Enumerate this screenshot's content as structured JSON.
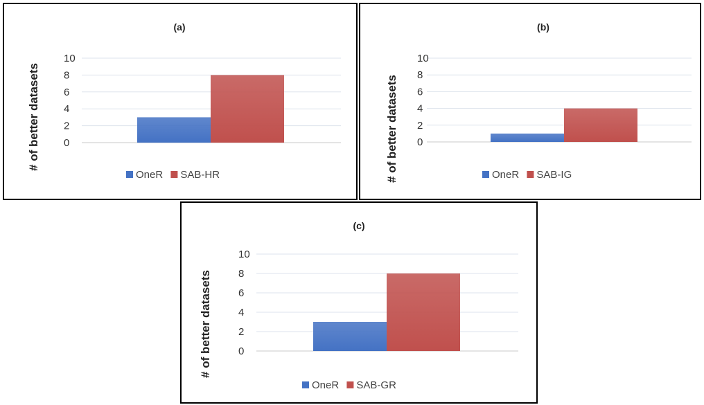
{
  "chart_data": [
    {
      "type": "bar",
      "title": "(a)",
      "ylabel": "# of better datasets",
      "xlabel": "",
      "ylim": [
        0,
        10
      ],
      "yticks": [
        "10",
        "8",
        "6",
        "4",
        "2",
        "0"
      ],
      "grid": true,
      "legend_position": "bottom",
      "series": [
        {
          "name": "OneR",
          "values": [
            3
          ],
          "color": "#4472c4"
        },
        {
          "name": "SAB-HR",
          "values": [
            8
          ],
          "color": "#c0504d"
        }
      ]
    },
    {
      "type": "bar",
      "title": "(b)",
      "ylabel": "# of better datasets",
      "xlabel": "",
      "ylim": [
        0,
        10
      ],
      "yticks": [
        "10",
        "8",
        "6",
        "4",
        "2",
        "0"
      ],
      "grid": true,
      "legend_position": "bottom",
      "series": [
        {
          "name": "OneR",
          "values": [
            1
          ],
          "color": "#4472c4"
        },
        {
          "name": "SAB-IG",
          "values": [
            4
          ],
          "color": "#c0504d"
        }
      ]
    },
    {
      "type": "bar",
      "title": "(c)",
      "ylabel": "# of better datasets",
      "xlabel": "",
      "ylim": [
        0,
        10
      ],
      "yticks": [
        "10",
        "8",
        "6",
        "4",
        "2",
        "0"
      ],
      "grid": true,
      "legend_position": "bottom",
      "series": [
        {
          "name": "OneR",
          "values": [
            3
          ],
          "color": "#4472c4"
        },
        {
          "name": "SAB-GR",
          "values": [
            8
          ],
          "color": "#c0504d"
        }
      ]
    }
  ]
}
